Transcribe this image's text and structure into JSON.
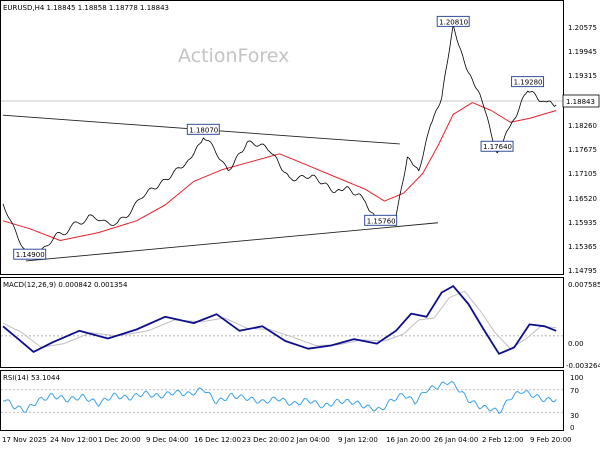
{
  "watermark": "ActionForex",
  "chart_data": [
    {
      "type": "line",
      "panel": "price",
      "header": "EURUSD,H4  1.18845 1.18858 1.18778 1.18843",
      "last_price_label": "1.18843",
      "y_ticks": [
        "1.20575",
        "1.19945",
        "1.19315",
        "1.18843",
        "1.18260",
        "1.17675",
        "1.17105",
        "1.16520",
        "1.15935",
        "1.15365",
        "1.14795"
      ],
      "ylim": [
        1.146,
        1.212
      ],
      "x_ticks": [
        "17 Nov 2025",
        "24 Nov 12:00",
        "1 Dec 20:00",
        "9 Dec 04:00",
        "16 Dec 12:00",
        "23 Dec 20:00",
        "2 Jan 04:00",
        "9 Jan 12:00",
        "16 Jan 20:00",
        "26 Jan 04:00",
        "2 Feb 12:00",
        "9 Feb 20:00"
      ],
      "annotations": [
        {
          "label": "1.20810",
          "bar": 236,
          "price": 1.2081
        },
        {
          "label": "1.19280",
          "bar": 275,
          "price": 1.1928
        },
        {
          "label": "1.18070",
          "bar": 105,
          "price": 1.1807
        },
        {
          "label": "1.17640",
          "bar": 259,
          "price": 1.1764
        },
        {
          "label": "1.15760",
          "bar": 198,
          "price": 1.1576
        },
        {
          "label": "1.14900",
          "bar": 14,
          "price": 1.149
        }
      ],
      "trend_lines": [
        {
          "from": {
            "bar": 0,
            "price": 1.1858
          },
          "to": {
            "bar": 208,
            "price": 1.1785
          }
        },
        {
          "from": {
            "bar": 12,
            "price": 1.1488
          },
          "to": {
            "bar": 228,
            "price": 1.1585
          }
        }
      ],
      "series": [
        {
          "name": "",
          "color": "#000000",
          "points": [
            [
              0,
              1.163
            ],
            [
              14,
              1.149
            ],
            [
              28,
              1.155
            ],
            [
              45,
              1.16
            ],
            [
              60,
              1.158
            ],
            [
              75,
              1.166
            ],
            [
              86,
              1.17
            ],
            [
              98,
              1.174
            ],
            [
              105,
              1.1807
            ],
            [
              118,
              1.172
            ],
            [
              128,
              1.179
            ],
            [
              140,
              1.177
            ],
            [
              150,
              1.17
            ],
            [
              162,
              1.17
            ],
            [
              172,
              1.167
            ],
            [
              180,
              1.167
            ],
            [
              190,
              1.164
            ],
            [
              198,
              1.1576
            ],
            [
              206,
              1.161
            ],
            [
              212,
              1.175
            ],
            [
              218,
              1.171
            ],
            [
              224,
              1.184
            ],
            [
              230,
              1.19
            ],
            [
              236,
              1.2081
            ],
            [
              244,
              1.197
            ],
            [
              252,
              1.188
            ],
            [
              259,
              1.1764
            ],
            [
              266,
              1.183
            ],
            [
              275,
              1.1928
            ],
            [
              284,
              1.189
            ],
            [
              290,
              1.1884
            ]
          ]
        },
        {
          "name": "",
          "color": "#e8202a",
          "points": [
            [
              0,
              1.159
            ],
            [
              14,
              1.157
            ],
            [
              30,
              1.154
            ],
            [
              50,
              1.156
            ],
            [
              70,
              1.159
            ],
            [
              85,
              1.163
            ],
            [
              100,
              1.169
            ],
            [
              115,
              1.172
            ],
            [
              130,
              1.174
            ],
            [
              145,
              1.176
            ],
            [
              160,
              1.173
            ],
            [
              175,
              1.17
            ],
            [
              190,
              1.167
            ],
            [
              200,
              1.164
            ],
            [
              210,
              1.166
            ],
            [
              220,
              1.171
            ],
            [
              228,
              1.178
            ],
            [
              236,
              1.186
            ],
            [
              246,
              1.189
            ],
            [
              256,
              1.187
            ],
            [
              266,
              1.184
            ],
            [
              276,
              1.185
            ],
            [
              290,
              1.187
            ]
          ]
        }
      ]
    },
    {
      "type": "line",
      "panel": "macd",
      "header": "MACD(12,26,9) 0.000842 0.001354",
      "y_ticks": [
        "0.007585",
        "0.00",
        "-0.003264"
      ],
      "ylim": [
        -0.0044,
        0.0086
      ],
      "series": [
        {
          "name": "",
          "color": "#0e0e8c",
          "points": [
            [
              0,
              0.0015
            ],
            [
              8,
              -0.0005
            ],
            [
              16,
              -0.0025
            ],
            [
              26,
              -0.001
            ],
            [
              40,
              0.0008
            ],
            [
              55,
              -0.0004
            ],
            [
              70,
              0.001
            ],
            [
              85,
              0.003
            ],
            [
              100,
              0.002
            ],
            [
              112,
              0.0034
            ],
            [
              124,
              0.0008
            ],
            [
              136,
              0.0015
            ],
            [
              148,
              -0.0008
            ],
            [
              160,
              -0.002
            ],
            [
              172,
              -0.0015
            ],
            [
              184,
              -0.0005
            ],
            [
              196,
              -0.0012
            ],
            [
              206,
              0.0008
            ],
            [
              214,
              0.0035
            ],
            [
              222,
              0.003
            ],
            [
              230,
              0.0068
            ],
            [
              236,
              0.0078
            ],
            [
              244,
              0.005
            ],
            [
              252,
              0.001
            ],
            [
              260,
              -0.0028
            ],
            [
              268,
              -0.0018
            ],
            [
              276,
              0.0018
            ],
            [
              284,
              0.0015
            ],
            [
              290,
              0.0008
            ]
          ]
        },
        {
          "name": "",
          "color": "#c0c0c0",
          "points": [
            [
              0,
              0.002
            ],
            [
              10,
              0.0005
            ],
            [
              20,
              -0.0018
            ],
            [
              32,
              -0.0012
            ],
            [
              46,
              0.0005
            ],
            [
              60,
              0.0
            ],
            [
              76,
              0.0008
            ],
            [
              90,
              0.0025
            ],
            [
              104,
              0.0022
            ],
            [
              116,
              0.0028
            ],
            [
              128,
              0.0012
            ],
            [
              140,
              0.001
            ],
            [
              152,
              -0.0002
            ],
            [
              164,
              -0.0015
            ],
            [
              176,
              -0.0014
            ],
            [
              188,
              -0.0006
            ],
            [
              200,
              -0.0008
            ],
            [
              210,
              0.0003
            ],
            [
              218,
              0.0025
            ],
            [
              226,
              0.0028
            ],
            [
              234,
              0.006
            ],
            [
              242,
              0.007
            ],
            [
              250,
              0.004
            ],
            [
              258,
              0.0005
            ],
            [
              266,
              -0.002
            ],
            [
              274,
              -0.0005
            ],
            [
              282,
              0.0015
            ],
            [
              290,
              0.0013
            ]
          ]
        }
      ]
    },
    {
      "type": "line",
      "panel": "rsi",
      "header": "RSI(14) 53.1044",
      "y_ticks": [
        "100",
        "70",
        "30",
        "0"
      ],
      "ylim": [
        0,
        100
      ],
      "series": [
        {
          "name": "",
          "color": "#3da3e8",
          "points": [
            [
              0,
              55
            ],
            [
              6,
              40
            ],
            [
              12,
              33
            ],
            [
              18,
              50
            ],
            [
              26,
              60
            ],
            [
              34,
              52
            ],
            [
              42,
              58
            ],
            [
              50,
              45
            ],
            [
              58,
              60
            ],
            [
              66,
              55
            ],
            [
              74,
              64
            ],
            [
              82,
              58
            ],
            [
              90,
              66
            ],
            [
              98,
              62
            ],
            [
              105,
              72
            ],
            [
              112,
              48
            ],
            [
              120,
              60
            ],
            [
              128,
              55
            ],
            [
              136,
              48
            ],
            [
              144,
              55
            ],
            [
              152,
              44
            ],
            [
              160,
              52
            ],
            [
              168,
              40
            ],
            [
              176,
              50
            ],
            [
              184,
              48
            ],
            [
              192,
              38
            ],
            [
              198,
              34
            ],
            [
              204,
              52
            ],
            [
              210,
              62
            ],
            [
              216,
              48
            ],
            [
              222,
              70
            ],
            [
              228,
              76
            ],
            [
              234,
              85
            ],
            [
              238,
              74
            ],
            [
              244,
              52
            ],
            [
              250,
              40
            ],
            [
              256,
              36
            ],
            [
              260,
              30
            ],
            [
              266,
              56
            ],
            [
              272,
              68
            ],
            [
              278,
              60
            ],
            [
              284,
              52
            ],
            [
              290,
              53
            ]
          ]
        }
      ]
    }
  ]
}
